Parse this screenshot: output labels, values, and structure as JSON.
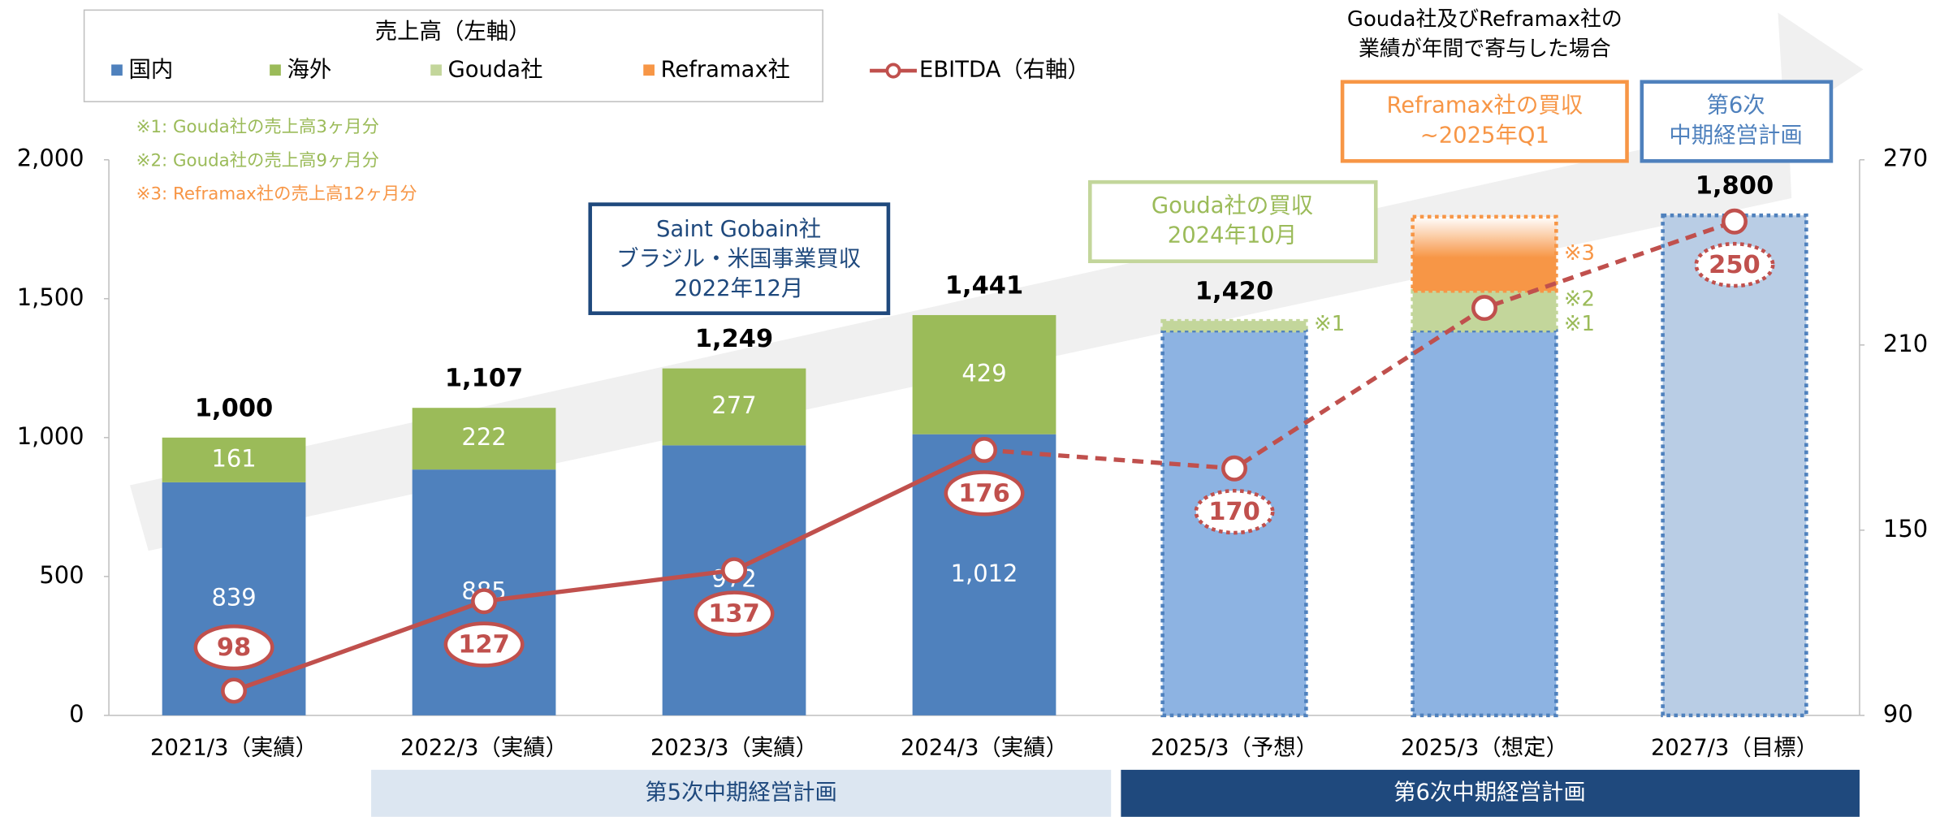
{
  "chart_data": {
    "type": "bar",
    "stacked": true,
    "legend_title": "売上高（左軸）",
    "categories": [
      "2021/3（実績）",
      "2022/3（実績）",
      "2023/3（実績）",
      "2024/3（実績）",
      "2025/3（予想）",
      "2025/3（想定）",
      "2027/3（目標）"
    ],
    "series": [
      {
        "name": "国内",
        "color": "#4f81bd",
        "values": [
          839,
          885,
          972,
          1012,
          1385,
          1385,
          1800
        ],
        "value_labels": [
          "839",
          "885",
          "972",
          "1,012",
          null,
          null,
          null
        ]
      },
      {
        "name": "海外",
        "color": "#9bbb59",
        "values": [
          161,
          222,
          277,
          429,
          null,
          null,
          null
        ],
        "value_labels": [
          "161",
          "222",
          "277",
          "429",
          null,
          null,
          null
        ]
      },
      {
        "name": "Gouda社",
        "color": "#c3d69b",
        "values": [
          null,
          null,
          null,
          null,
          35,
          143,
          null
        ]
      },
      {
        "name": "Reframax社",
        "color": "#f79646",
        "values": [
          null,
          null,
          null,
          null,
          null,
          267,
          null
        ]
      },
      {
        "name": "EBITDA（右軸）",
        "color": "#c0504d",
        "axis": "y2",
        "type": "line",
        "values": [
          98,
          127,
          137,
          176,
          170,
          222,
          250
        ],
        "value_labels": [
          "98",
          "127",
          "137",
          "176",
          "170",
          null,
          "250"
        ]
      }
    ],
    "totals": [
      1000,
      1107,
      1249,
      1441,
      1420,
      null,
      1800
    ],
    "total_labels": [
      "1,000",
      "1,107",
      "1,249",
      "1,441",
      "1,420",
      null,
      "1,800"
    ],
    "forecast_from": 4,
    "forecast_color": "#8db3e2",
    "target_color": "#b9cde5",
    "line_dashed_from": 3,
    "ylim": [
      0,
      2000
    ],
    "yticks": [
      0,
      500,
      {
        "value": 1000,
        "label": "1,000"
      },
      {
        "value": 1500,
        "label": "1,500"
      },
      {
        "value": 2000,
        "label": "2,000"
      }
    ],
    "y2lim": [
      90,
      270
    ],
    "y2ticks": [
      90,
      150,
      210,
      270
    ],
    "notes": [
      "※1: Gouda社の売上高3ヶ月分",
      "※2: Gouda社の売上高9ヶ月分",
      "※3: Reframax社の売上高12ヶ月分"
    ],
    "annotations": {
      "saint_gobain": [
        "Saint Gobain社",
        "ブラジル・米国事業買収",
        "2022年12月"
      ],
      "gouda": [
        "Gouda社の買収",
        "2024年10月"
      ],
      "reframax": [
        "Reframax社の買収",
        "~2025年Q1"
      ],
      "plan6_box": [
        "第6次",
        "中期経営計画"
      ],
      "full_year": [
        "Gouda社及びReframax社の",
        "業績が年間で寄与した場合"
      ]
    },
    "side_marks": [
      "※1",
      "※3",
      "※2",
      "※1"
    ],
    "periods": [
      "第5次中期経営計画",
      "第6次中期経営計画"
    ]
  }
}
